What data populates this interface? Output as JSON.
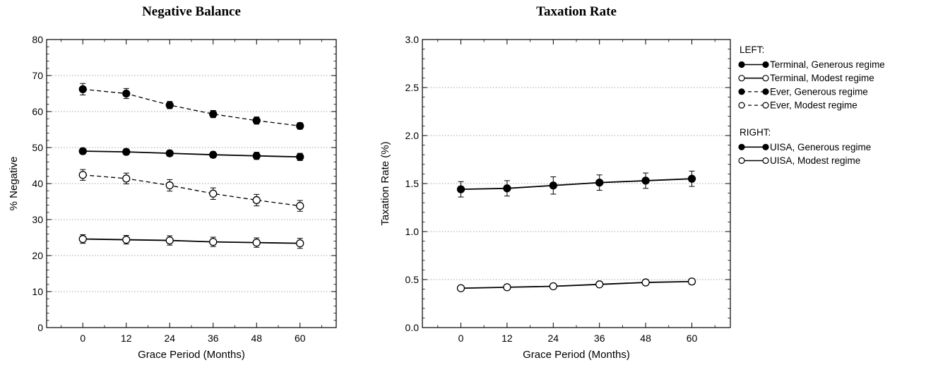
{
  "chart_data": [
    {
      "type": "line",
      "title": "Negative Balance",
      "xlabel": "Grace Period (Months)",
      "ylabel": "% Negative",
      "x": [
        0,
        12,
        24,
        36,
        48,
        60
      ],
      "xlim": [
        -10,
        70
      ],
      "ylim": [
        0,
        80
      ],
      "yticks": [
        0,
        10,
        20,
        30,
        40,
        50,
        60,
        70,
        80
      ],
      "grid": "horizontal-dotted",
      "series": [
        {
          "name": "Ever, Generous regime",
          "line": "dashed",
          "marker": "filled",
          "values": [
            66.2,
            65.0,
            61.8,
            59.3,
            57.5,
            56.0
          ],
          "errors": [
            1.6,
            1.4,
            1.0,
            1.0,
            1.0,
            0.9
          ]
        },
        {
          "name": "Terminal, Generous regime",
          "line": "solid",
          "marker": "filled",
          "values": [
            49.0,
            48.8,
            48.4,
            48.0,
            47.7,
            47.4
          ],
          "errors": [
            0.8,
            0.8,
            0.8,
            0.8,
            1.0,
            1.0
          ]
        },
        {
          "name": "Ever, Modest regime",
          "line": "dashed",
          "marker": "open",
          "values": [
            42.4,
            41.4,
            39.5,
            37.2,
            35.4,
            33.8
          ],
          "errors": [
            1.5,
            1.5,
            1.6,
            1.6,
            1.6,
            1.5
          ]
        },
        {
          "name": "Terminal, Modest regime",
          "line": "solid",
          "marker": "open",
          "values": [
            24.6,
            24.4,
            24.2,
            23.8,
            23.6,
            23.4
          ],
          "errors": [
            1.2,
            1.2,
            1.3,
            1.3,
            1.3,
            1.4
          ]
        }
      ]
    },
    {
      "type": "line",
      "title": "Taxation Rate",
      "xlabel": "Grace Period (Months)",
      "ylabel": "Taxation Rate (%)",
      "x": [
        0,
        12,
        24,
        36,
        48,
        60
      ],
      "xlim": [
        -10,
        70
      ],
      "ylim": [
        0,
        3
      ],
      "yticks": [
        "0.0",
        "0.5",
        "1.0",
        "1.5",
        "2.0",
        "2.5",
        "3.0"
      ],
      "grid": "horizontal-dotted",
      "series": [
        {
          "name": "UISA, Generous regime",
          "line": "solid",
          "marker": "filled",
          "values": [
            1.44,
            1.45,
            1.48,
            1.51,
            1.53,
            1.55
          ],
          "errors": [
            0.08,
            0.08,
            0.09,
            0.08,
            0.08,
            0.08
          ]
        },
        {
          "name": "UISA, Modest regime",
          "line": "solid",
          "marker": "open",
          "values": [
            0.41,
            0.42,
            0.43,
            0.45,
            0.47,
            0.48
          ],
          "errors": [
            0.02,
            0.02,
            0.02,
            0.02,
            0.02,
            0.03
          ]
        }
      ]
    }
  ],
  "legend": {
    "placement": "right",
    "groups": [
      {
        "heading": "LEFT:",
        "items": [
          {
            "label": "Terminal, Generous regime",
            "line": "solid",
            "marker": "filled"
          },
          {
            "label": "Terminal, Modest regime",
            "line": "solid",
            "marker": "open"
          },
          {
            "label": "Ever, Generous regime",
            "line": "dashed",
            "marker": "filled"
          },
          {
            "label": "Ever, Modest regime",
            "line": "dashed",
            "marker": "open"
          }
        ]
      },
      {
        "heading": "RIGHT:",
        "items": [
          {
            "label": "UISA, Generous regime",
            "line": "solid",
            "marker": "filled"
          },
          {
            "label": "UISA, Modest regime",
            "line": "solid",
            "marker": "open"
          }
        ]
      }
    ]
  }
}
